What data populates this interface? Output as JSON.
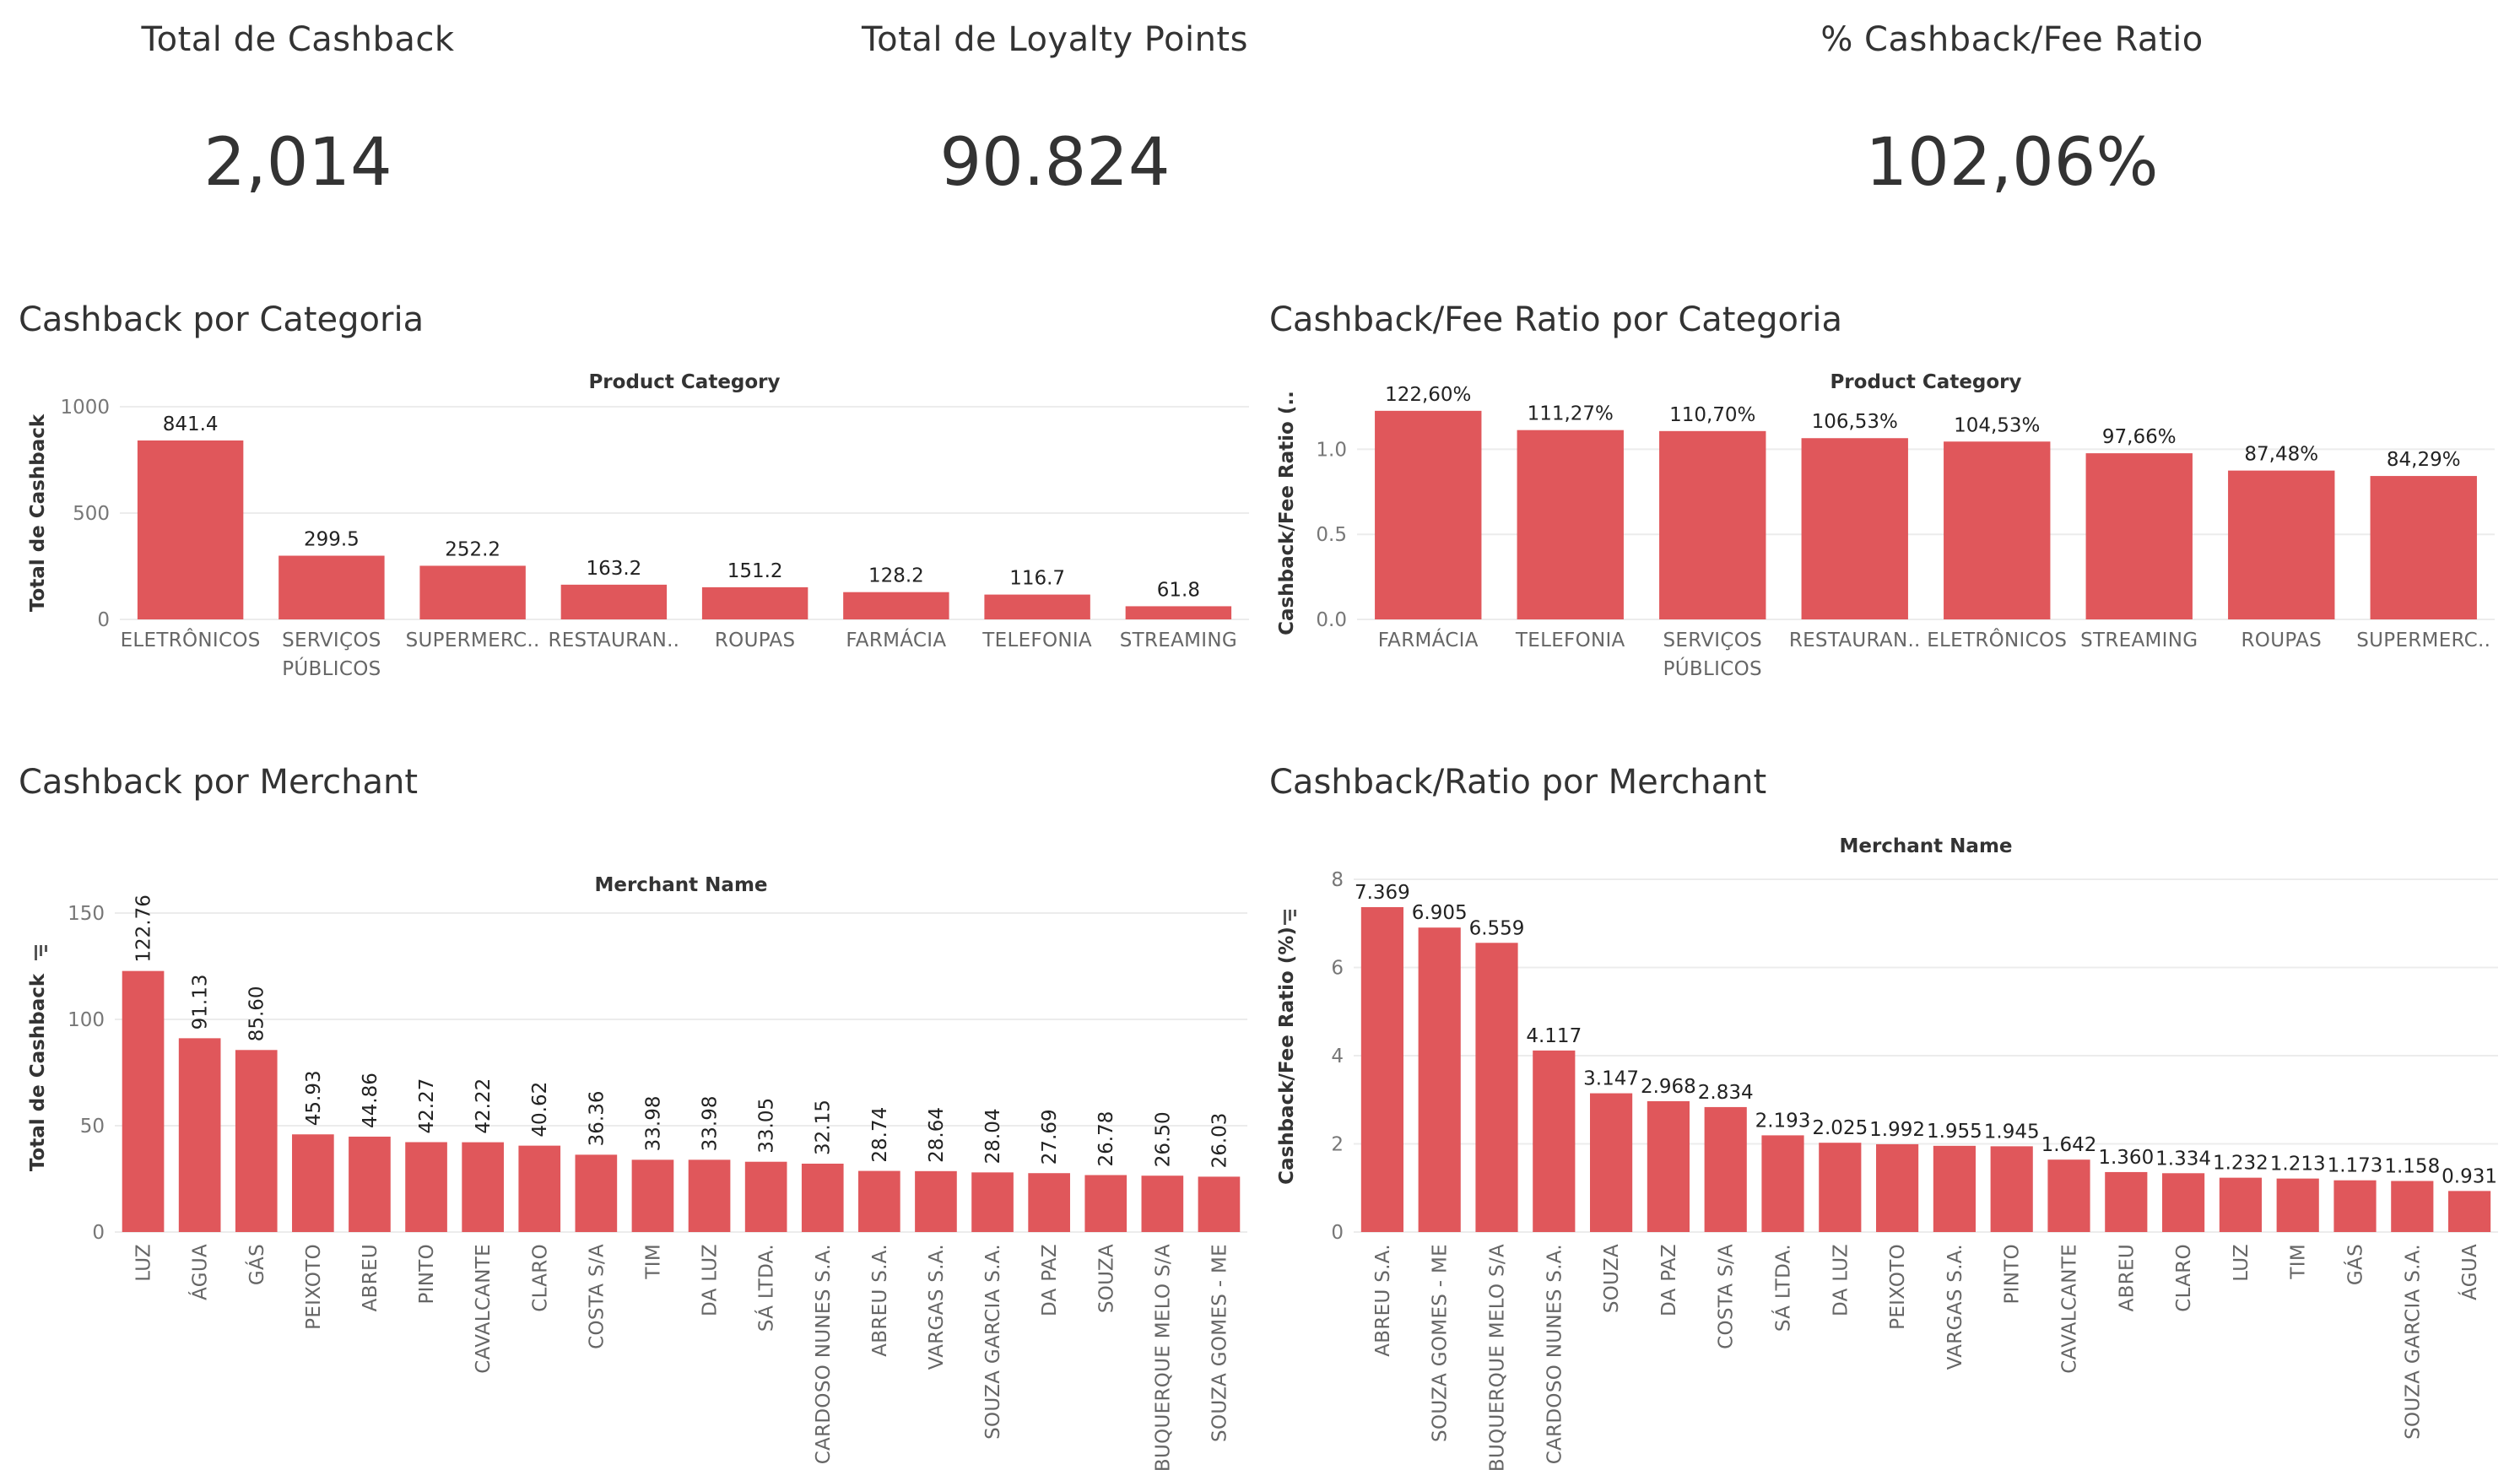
{
  "kpis": [
    {
      "title": "Total de Cashback",
      "value": "2,014"
    },
    {
      "title": "Total de Loyalty Points",
      "value": "90.824"
    },
    {
      "title": "% Cashback/Fee Ratio",
      "value": "102,06%"
    }
  ],
  "sections": {
    "cashback_categoria": "Cashback por Categoria",
    "ratio_categoria": "Cashback/Fee Ratio por Categoria",
    "cashback_merchant": "Cashback por Merchant",
    "ratio_merchant": "Cashback/Ratio por Merchant"
  },
  "colors": {
    "bar": "#e0575b"
  },
  "chart_data": [
    {
      "id": "cashback_categoria",
      "type": "bar",
      "header": "Product Category",
      "ylabel": "Total de Cashback",
      "ylim": [
        0,
        1000
      ],
      "yticks": [
        {
          "v": 0,
          "t": "0"
        },
        {
          "v": 500,
          "t": "500"
        },
        {
          "v": 1000,
          "t": "1000"
        }
      ],
      "categories": [
        [
          "ELETRÔNICOS"
        ],
        [
          "SERVIÇOS",
          "PÚBLICOS"
        ],
        [
          "SUPERMERC.."
        ],
        [
          "RESTAURAN.."
        ],
        [
          "ROUPAS"
        ],
        [
          "FARMÁCIA"
        ],
        [
          "TELEFONIA"
        ],
        [
          "STREAMING"
        ]
      ],
      "values": [
        841.4,
        299.5,
        252.2,
        163.2,
        151.2,
        128.2,
        116.7,
        61.8
      ],
      "labels": [
        "841.4",
        "299.5",
        "252.2",
        "163.2",
        "151.2",
        "128.2",
        "116.7",
        "61.8"
      ]
    },
    {
      "id": "ratio_categoria",
      "type": "bar",
      "header": "Product Category",
      "ylabel": "Cashback/Fee Ratio (..",
      "ylim": [
        0,
        1.25
      ],
      "yticks": [
        {
          "v": 0,
          "t": "0.0"
        },
        {
          "v": 0.5,
          "t": "0.5"
        },
        {
          "v": 1.0,
          "t": "1.0"
        }
      ],
      "categories": [
        [
          "FARMÁCIA"
        ],
        [
          "TELEFONIA"
        ],
        [
          "SERVIÇOS",
          "PÚBLICOS"
        ],
        [
          "RESTAURAN.."
        ],
        [
          "ELETRÔNICOS"
        ],
        [
          "STREAMING"
        ],
        [
          "ROUPAS"
        ],
        [
          "SUPERMERC.."
        ]
      ],
      "values": [
        1.226,
        1.1127,
        1.107,
        1.0653,
        1.0453,
        0.9766,
        0.8748,
        0.8429
      ],
      "labels": [
        "122,60%",
        "111,27%",
        "110,70%",
        "106,53%",
        "104,53%",
        "97,66%",
        "87,48%",
        "84,29%"
      ]
    },
    {
      "id": "cashback_merchant",
      "type": "bar",
      "header": "Merchant Name",
      "ylabel": "Total de Cashback",
      "ylim": [
        0,
        150
      ],
      "yticks": [
        {
          "v": 0,
          "t": "0"
        },
        {
          "v": 50,
          "t": "50"
        },
        {
          "v": 100,
          "t": "100"
        },
        {
          "v": 150,
          "t": "150"
        }
      ],
      "categories": [
        "LUZ",
        "ÁGUA",
        "GÁS",
        "PEIXOTO",
        "ABREU",
        "PINTO",
        "CAVALCANTE",
        "CLARO",
        "COSTA S/A",
        "TIM",
        "DA LUZ",
        "SÁ LTDA.",
        "CARDOSO NUNES S.A.",
        "ABREU S.A.",
        "VARGAS S.A.",
        "SOUZA GARCIA S.A.",
        "DA PAZ",
        "SOUZA",
        "ALBUQUERQUE MELO S/A",
        "SOUZA GOMES - ME"
      ],
      "values": [
        122.76,
        91.13,
        85.6,
        45.93,
        44.86,
        42.27,
        42.22,
        40.62,
        36.36,
        33.98,
        33.98,
        33.05,
        32.15,
        28.74,
        28.64,
        28.04,
        27.69,
        26.78,
        26.5,
        26.03
      ],
      "labels": [
        "122.76",
        "91.13",
        "85.60",
        "45.93",
        "44.86",
        "42.27",
        "42.22",
        "40.62",
        "36.36",
        "33.98",
        "33.98",
        "33.05",
        "32.15",
        "28.74",
        "28.64",
        "28.04",
        "27.69",
        "26.78",
        "26.50",
        "26.03"
      ]
    },
    {
      "id": "ratio_merchant",
      "type": "bar",
      "header": "Merchant Name",
      "ylabel": "Cashback/Fee Ratio (%)",
      "ylim": [
        0,
        8
      ],
      "yticks": [
        {
          "v": 0,
          "t": "0"
        },
        {
          "v": 2,
          "t": "2"
        },
        {
          "v": 4,
          "t": "4"
        },
        {
          "v": 6,
          "t": "6"
        },
        {
          "v": 8,
          "t": "8"
        }
      ],
      "categories": [
        "ABREU S.A.",
        "SOUZA GOMES - ME",
        "ALBUQUERQUE MELO S/A",
        "CARDOSO NUNES S.A.",
        "SOUZA",
        "DA PAZ",
        "COSTA S/A",
        "SÁ LTDA.",
        "DA LUZ",
        "PEIXOTO",
        "VARGAS S.A.",
        "PINTO",
        "CAVALCANTE",
        "ABREU",
        "CLARO",
        "LUZ",
        "TIM",
        "GÁS",
        "SOUZA GARCIA S.A.",
        "ÁGUA"
      ],
      "values": [
        7.369,
        6.905,
        6.559,
        4.117,
        3.147,
        2.968,
        2.834,
        2.193,
        2.025,
        1.992,
        1.955,
        1.945,
        1.642,
        1.36,
        1.334,
        1.232,
        1.213,
        1.173,
        1.158,
        0.931
      ],
      "labels": [
        "7.369",
        "6.905",
        "6.559",
        "4.117",
        "3.147",
        "2.968",
        "2.834",
        "2.193",
        "2.025",
        "1.992",
        "1.955",
        "1.945",
        "1.642",
        "1.360",
        "1.334",
        "1.232",
        "1.213",
        "1.173",
        "1.158",
        "0.931"
      ]
    }
  ]
}
